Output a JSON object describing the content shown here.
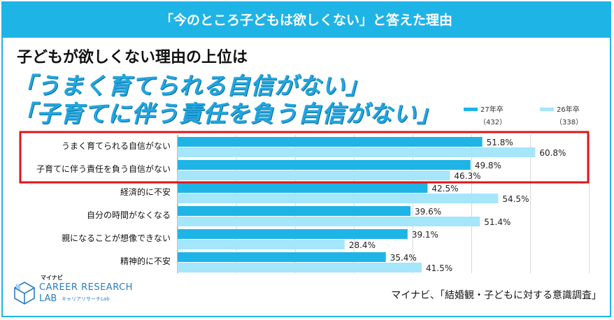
{
  "header": {
    "banner": "「今のところ子どもは欲しくない」と答えた理由",
    "headline": "子どもが欲しくない理由の上位は",
    "big_line1": "「うまく育てられる自信がない」",
    "big_line2": "「子育てに伴う責任を負う自信がない」"
  },
  "logo": {
    "small": "マイナビ",
    "main": "CAREER RESEARCH",
    "lab": "LAB",
    "sub": "キャリアリサーチLab"
  },
  "source": "マイナビ、「結婚観・子どもに対する意識調査」",
  "colors": {
    "accent": "#1fb4e6",
    "series1": "#1fb4e6",
    "series2": "#a6e6fb",
    "highlight": "#e0151a"
  },
  "chart_data": {
    "type": "bar",
    "orientation": "horizontal",
    "categories": [
      "うまく育てられる自信がない",
      "子育てに伴う責任を負う自信がない",
      "経済的に不安",
      "自分の時間がなくなる",
      "親になることが想像できない",
      "精神的に不安"
    ],
    "series": [
      {
        "name": "27年卒",
        "n": "（432）",
        "values": [
          51.8,
          49.8,
          42.5,
          39.6,
          39.1,
          35.4
        ]
      },
      {
        "name": "26年卒",
        "n": "（338）",
        "values": [
          60.8,
          46.3,
          54.5,
          51.4,
          28.4,
          41.5
        ]
      }
    ],
    "value_suffix": "%",
    "xlim": [
      0,
      70
    ],
    "grid": true,
    "legend_position": "top-right",
    "highlighted_categories": [
      0,
      1
    ]
  }
}
